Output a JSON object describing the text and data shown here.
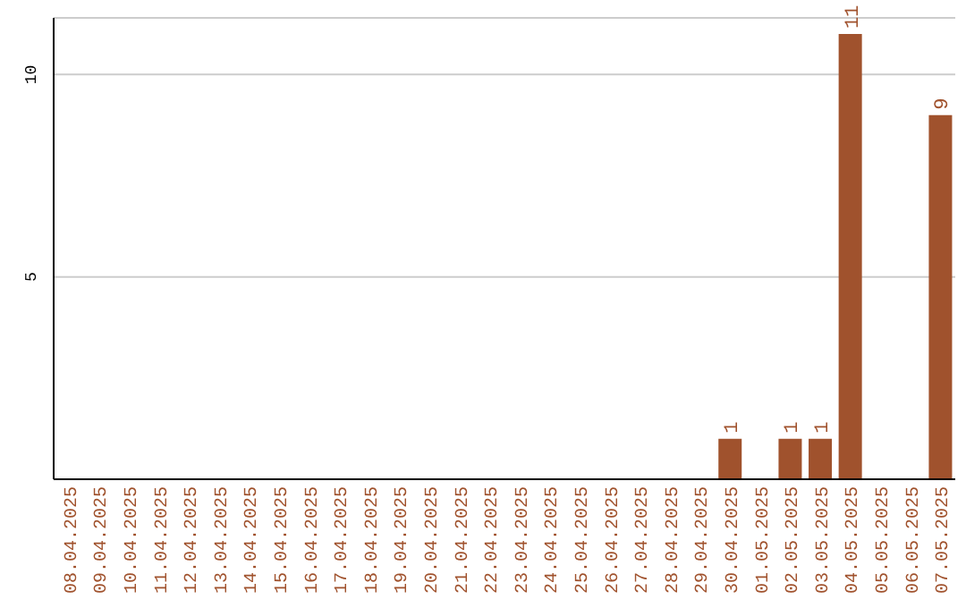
{
  "chart_data": {
    "type": "bar",
    "categories": [
      "08.04.2025",
      "09.04.2025",
      "10.04.2025",
      "11.04.2025",
      "12.04.2025",
      "13.04.2025",
      "14.04.2025",
      "15.04.2025",
      "16.04.2025",
      "17.04.2025",
      "18.04.2025",
      "19.04.2025",
      "20.04.2025",
      "21.04.2025",
      "22.04.2025",
      "23.04.2025",
      "24.04.2025",
      "25.04.2025",
      "26.04.2025",
      "27.04.2025",
      "28.04.2025",
      "29.04.2025",
      "30.04.2025",
      "01.05.2025",
      "02.05.2025",
      "03.05.2025",
      "04.05.2025",
      "05.05.2025",
      "06.05.2025",
      "07.05.2025"
    ],
    "values": [
      0,
      0,
      0,
      0,
      0,
      0,
      0,
      0,
      0,
      0,
      0,
      0,
      0,
      0,
      0,
      0,
      0,
      0,
      0,
      0,
      0,
      0,
      1,
      0,
      1,
      1,
      11,
      0,
      0,
      9
    ],
    "value_labels": [
      null,
      null,
      null,
      null,
      null,
      null,
      null,
      null,
      null,
      null,
      null,
      null,
      null,
      null,
      null,
      null,
      null,
      null,
      null,
      null,
      null,
      null,
      "1",
      null,
      "1",
      "1",
      "11",
      null,
      null,
      "9"
    ],
    "color": "#a0522d",
    "ylim": [
      0,
      11.4
    ],
    "yticks": [
      5,
      10
    ],
    "grid": "y"
  }
}
